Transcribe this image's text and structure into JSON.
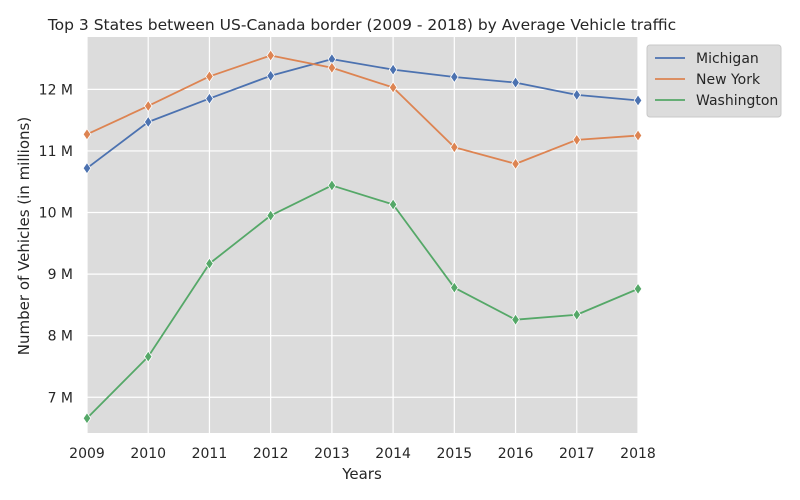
{
  "chart_data": {
    "type": "line",
    "title": "Top 3 States between US-Canada border (2009 - 2018) by Average Vehicle traffic",
    "xlabel": "Years",
    "ylabel": "Number of Vehicles (in millions)",
    "x": [
      "2009",
      "2010",
      "2011",
      "2012",
      "2013",
      "2014",
      "2015",
      "2016",
      "2017",
      "2018"
    ],
    "y_ticks": [
      {
        "value": 7,
        "label": "7 M"
      },
      {
        "value": 8,
        "label": "8 M"
      },
      {
        "value": 9,
        "label": "9 M"
      },
      {
        "value": 10,
        "label": "10 M"
      },
      {
        "value": 11,
        "label": "11 M"
      },
      {
        "value": 12,
        "label": "12 M"
      }
    ],
    "ylim": [
      6.42,
      12.85
    ],
    "grid": true,
    "legend_position": "upper-right-outside",
    "series": [
      {
        "name": "Michigan",
        "color": "#4c72b0",
        "values": [
          10.72,
          11.47,
          11.85,
          12.22,
          12.49,
          12.32,
          12.2,
          12.11,
          11.91,
          11.82
        ]
      },
      {
        "name": "New York",
        "color": "#dd8452",
        "values": [
          11.27,
          11.73,
          12.21,
          12.55,
          12.35,
          12.03,
          11.06,
          10.79,
          11.18,
          11.25
        ]
      },
      {
        "name": "Washington",
        "color": "#55a868",
        "values": [
          6.66,
          7.66,
          9.17,
          9.95,
          10.44,
          10.13,
          8.78,
          8.26,
          8.34,
          8.76
        ]
      }
    ]
  }
}
